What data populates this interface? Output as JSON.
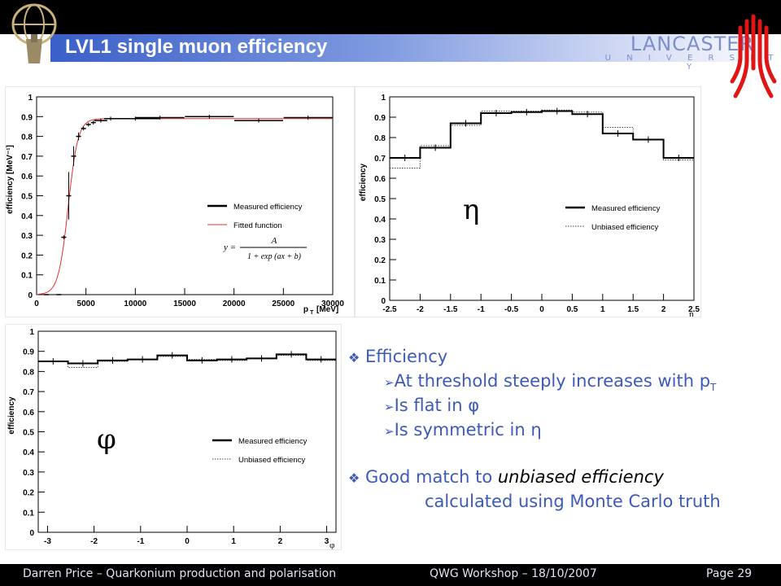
{
  "slide": {
    "title": "LVL1 single muon efficiency",
    "university_name": "LANCASTER",
    "university_sub": "U N I V E R S I T Y",
    "accent_color": "#3d5ab8"
  },
  "footer": {
    "author": "Darren Price – Quarkonium production and polarisation",
    "event": "QWG Workshop – 18/10/2007",
    "page": "Page 29"
  },
  "bullets": {
    "b1": "Efficiency",
    "b1a": "At threshold steeply increases with p",
    "b1a_sub": "T",
    "b1b": "Is flat in φ",
    "b1c": "Is symmetric in η",
    "b2_lead": "Good match to ",
    "b2_em": "unbiased efficiency",
    "b2_cont": "calculated using Monte Carlo truth"
  },
  "chart_data": [
    {
      "type": "line",
      "id": "pt",
      "ylabel": "efficiency [MeV⁻¹]",
      "xlabel": "p",
      "xlabel_sub": "T",
      "xlabel_unit": "[MeV]",
      "xlim": [
        0,
        30000
      ],
      "ylim": [
        0,
        1
      ],
      "xticks": [
        0,
        5000,
        10000,
        15000,
        20000,
        25000,
        30000
      ],
      "yticks": [
        0,
        0.1,
        0.2,
        0.3,
        0.4,
        0.5,
        0.6,
        0.7,
        0.8,
        0.9,
        1
      ],
      "legend": [
        "Measured efficiency",
        "Fitted function"
      ],
      "legend_position": "right",
      "formula_left": "y =",
      "formula_num": "A",
      "formula_den": "1 + exp (ax + b)",
      "series": [
        {
          "name": "Measured efficiency",
          "color": "#000000",
          "points": [
            [
              1000,
              0
            ],
            [
              2250,
              0
            ],
            [
              2750,
              0.29
            ],
            [
              3250,
              0.5
            ],
            [
              3750,
              0.7
            ],
            [
              4250,
              0.8
            ],
            [
              4750,
              0.84
            ],
            [
              5250,
              0.86
            ],
            [
              5750,
              0.87
            ],
            [
              6500,
              0.88
            ],
            [
              7500,
              0.89
            ],
            [
              10000,
              0.89
            ],
            [
              12500,
              0.895
            ],
            [
              17500,
              0.9
            ],
            [
              22500,
              0.88
            ],
            [
              27500,
              0.895
            ]
          ],
          "errors": [
            0,
            0,
            0.01,
            0.12,
            0.05,
            0.02,
            0.01,
            0.01,
            0.01,
            0.01,
            0.01,
            0.01,
            0.01,
            0.01,
            0.01,
            0.01
          ]
        },
        {
          "name": "Fitted function",
          "color": "#e03030",
          "A": 0.89,
          "center": 3200,
          "width": 500
        }
      ]
    },
    {
      "type": "line",
      "id": "eta",
      "symbol": "η",
      "ylabel": "efficiency",
      "xlabel": "η",
      "xlim": [
        -2.5,
        2.5
      ],
      "ylim": [
        0,
        1
      ],
      "xticks": [
        -2.5,
        -2,
        -1.5,
        -1,
        -0.5,
        0,
        0.5,
        1,
        1.5,
        2,
        2.5
      ],
      "yticks": [
        0,
        0.1,
        0.2,
        0.3,
        0.4,
        0.5,
        0.6,
        0.7,
        0.8,
        0.9,
        1
      ],
      "legend": [
        "Measured efficiency",
        "Unbiased efficiency"
      ],
      "legend_position": "right",
      "bin_edges": [
        -2.5,
        -2,
        -1.5,
        -1,
        -0.5,
        0,
        0.5,
        1,
        1.5,
        2,
        2.5
      ],
      "series": [
        {
          "name": "Measured efficiency",
          "values": [
            0.7,
            0.75,
            0.87,
            0.92,
            0.925,
            0.93,
            0.915,
            0.82,
            0.79,
            0.7
          ]
        },
        {
          "name": "Unbiased efficiency",
          "values": [
            0.65,
            0.76,
            0.86,
            0.93,
            0.93,
            0.935,
            0.925,
            0.85,
            0.79,
            0.69
          ]
        }
      ]
    },
    {
      "type": "line",
      "id": "phi",
      "symbol": "φ",
      "ylabel": "efficiency",
      "xlabel": "φ",
      "xlim": [
        -3.2,
        3.2
      ],
      "ylim": [
        0,
        1
      ],
      "xticks": [
        -3,
        -2,
        -1,
        0,
        1,
        2,
        3
      ],
      "yticks": [
        0,
        0.1,
        0.2,
        0.3,
        0.4,
        0.5,
        0.6,
        0.7,
        0.8,
        0.9,
        1
      ],
      "legend": [
        "Measured efficiency",
        "Unbiased efficiency"
      ],
      "legend_position": "right",
      "bin_edges": [
        -3.2,
        -2.56,
        -1.92,
        -1.28,
        -0.64,
        0,
        0.64,
        1.28,
        1.92,
        2.56,
        3.2
      ],
      "series": [
        {
          "name": "Measured efficiency",
          "values": [
            0.85,
            0.84,
            0.855,
            0.86,
            0.88,
            0.855,
            0.86,
            0.865,
            0.885,
            0.86
          ]
        },
        {
          "name": "Unbiased efficiency",
          "values": [
            0.85,
            0.82,
            0.85,
            0.86,
            0.875,
            0.86,
            0.855,
            0.865,
            0.88,
            0.855
          ]
        }
      ]
    }
  ]
}
